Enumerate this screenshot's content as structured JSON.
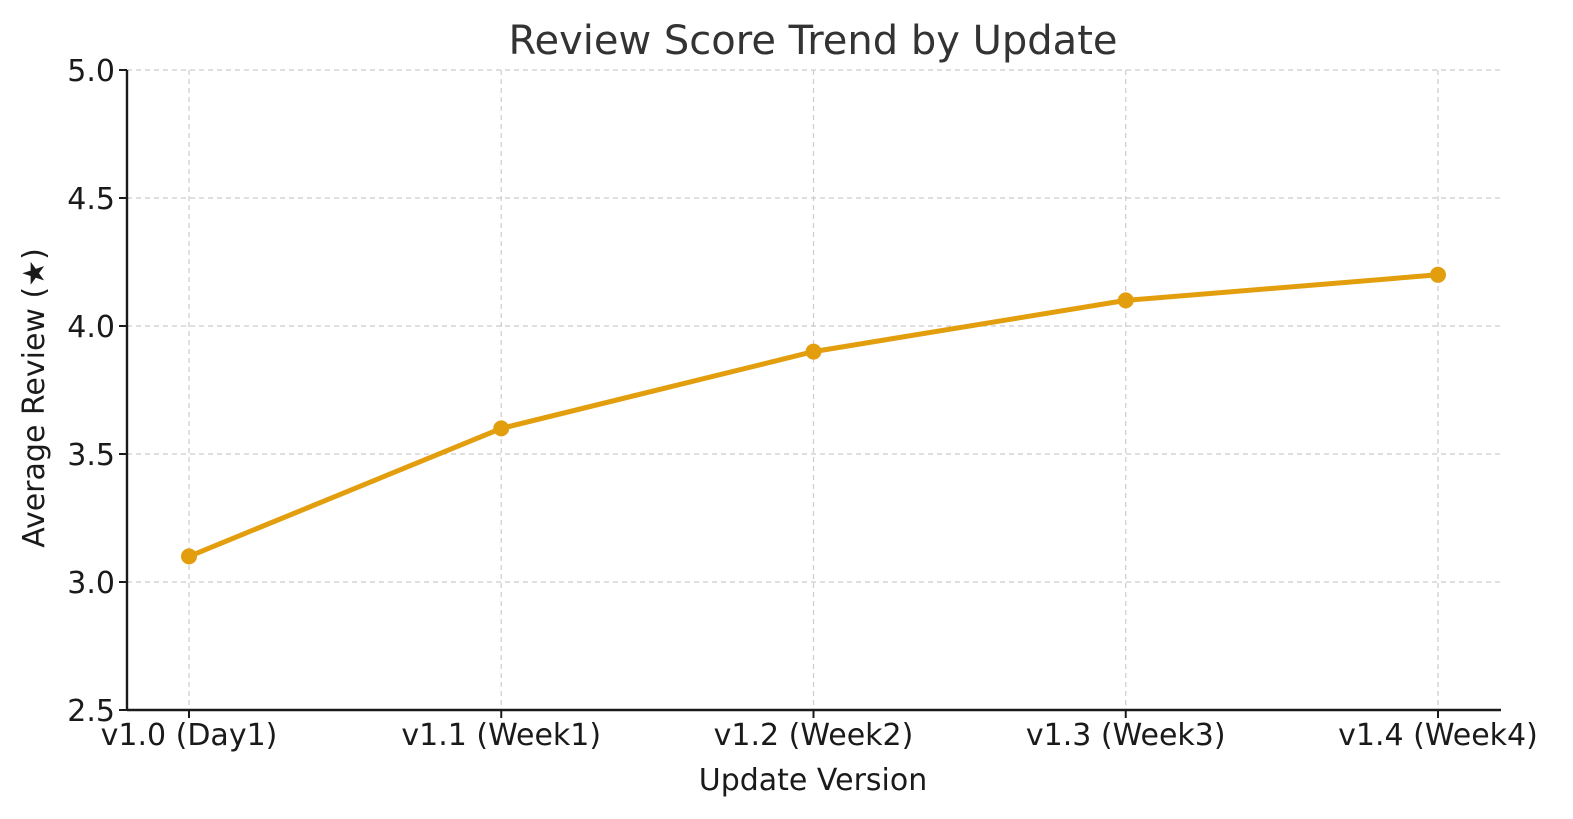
{
  "chart_data": {
    "type": "line",
    "title": "Review Score Trend by Update",
    "xlabel": "Update Version",
    "ylabel": "Average Review (★)",
    "categories": [
      "v1.0 (Day1)",
      "v1.1 (Week1)",
      "v1.2 (Week2)",
      "v1.3 (Week3)",
      "v1.4 (Week4)"
    ],
    "series": [
      {
        "values": [
          3.1,
          3.6,
          3.9,
          4.1,
          4.2
        ],
        "color": "#E39E0E"
      }
    ],
    "ylim": [
      2.5,
      5.0
    ],
    "yticks": [
      "2.5",
      "3.0",
      "3.5",
      "4.0",
      "4.5",
      "5.0"
    ],
    "grid": true,
    "legend": "none",
    "marker": "circle"
  }
}
